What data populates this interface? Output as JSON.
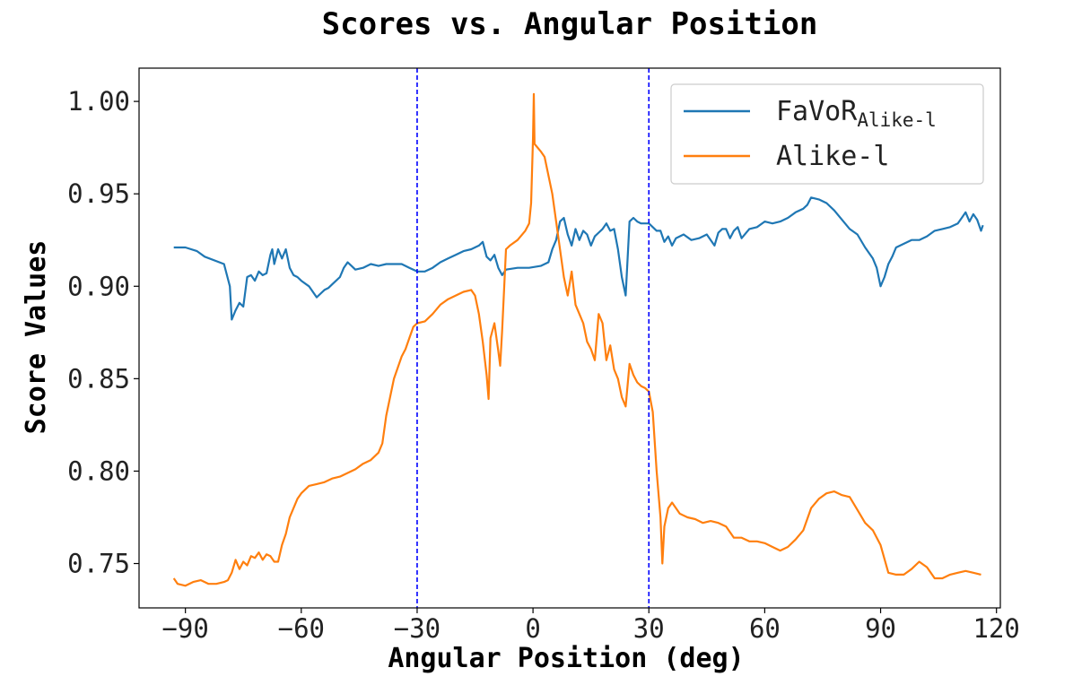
{
  "chart_data": {
    "type": "line",
    "title": "Scores vs. Angular Position",
    "xlabel": "Angular Position (deg)",
    "ylabel": "Score Values",
    "xlim": [
      -102,
      121
    ],
    "ylim": [
      0.726,
      1.018
    ],
    "xticks": [
      -90,
      -60,
      -30,
      0,
      30,
      60,
      90,
      120
    ],
    "xtick_labels": [
      "−90",
      "−60",
      "−30",
      "0",
      "30",
      "60",
      "90",
      "120"
    ],
    "yticks": [
      0.75,
      0.8,
      0.85,
      0.9,
      0.95,
      1.0
    ],
    "ytick_labels": [
      "0.75",
      "0.80",
      "0.85",
      "0.90",
      "0.95",
      "1.00"
    ],
    "grid": false,
    "legend_position": "top-right",
    "vlines": [
      {
        "x": -30,
        "color": "#0000ff",
        "style": "dashed"
      },
      {
        "x": 30,
        "color": "#0000ff",
        "style": "dashed"
      }
    ],
    "series": [
      {
        "name": "FaVoR",
        "name_subscript": "Alike-l",
        "color": "#1f77b4",
        "points": [
          [
            -93,
            0.921
          ],
          [
            -90,
            0.921
          ],
          [
            -87,
            0.919
          ],
          [
            -85,
            0.916
          ],
          [
            -80,
            0.912
          ],
          [
            -78.5,
            0.9
          ],
          [
            -78,
            0.882
          ],
          [
            -77,
            0.887
          ],
          [
            -76,
            0.891
          ],
          [
            -75,
            0.889
          ],
          [
            -74,
            0.905
          ],
          [
            -73,
            0.906
          ],
          [
            -72,
            0.903
          ],
          [
            -71,
            0.908
          ],
          [
            -70,
            0.906
          ],
          [
            -69,
            0.907
          ],
          [
            -68,
            0.917
          ],
          [
            -67.5,
            0.92
          ],
          [
            -67,
            0.912
          ],
          [
            -66,
            0.92
          ],
          [
            -65,
            0.915
          ],
          [
            -64,
            0.92
          ],
          [
            -63,
            0.91
          ],
          [
            -62,
            0.906
          ],
          [
            -61,
            0.905
          ],
          [
            -60,
            0.903
          ],
          [
            -58,
            0.9
          ],
          [
            -56,
            0.894
          ],
          [
            -55,
            0.896
          ],
          [
            -54,
            0.898
          ],
          [
            -53,
            0.899
          ],
          [
            -52,
            0.901
          ],
          [
            -50,
            0.905
          ],
          [
            -49,
            0.91
          ],
          [
            -48,
            0.913
          ],
          [
            -47,
            0.911
          ],
          [
            -46,
            0.909
          ],
          [
            -44,
            0.91
          ],
          [
            -42,
            0.912
          ],
          [
            -40,
            0.911
          ],
          [
            -38,
            0.912
          ],
          [
            -36,
            0.912
          ],
          [
            -34,
            0.912
          ],
          [
            -32,
            0.91
          ],
          [
            -30,
            0.908
          ],
          [
            -28,
            0.908
          ],
          [
            -26,
            0.91
          ],
          [
            -24,
            0.913
          ],
          [
            -22,
            0.915
          ],
          [
            -20,
            0.917
          ],
          [
            -18,
            0.919
          ],
          [
            -16,
            0.92
          ],
          [
            -14,
            0.922
          ],
          [
            -13,
            0.924
          ],
          [
            -12,
            0.916
          ],
          [
            -11,
            0.914
          ],
          [
            -10,
            0.917
          ],
          [
            -9,
            0.91
          ],
          [
            -8,
            0.906
          ],
          [
            -7,
            0.909
          ],
          [
            -4,
            0.91
          ],
          [
            -1,
            0.91
          ],
          [
            2,
            0.911
          ],
          [
            4,
            0.913
          ],
          [
            5,
            0.92
          ],
          [
            6,
            0.925
          ],
          [
            7,
            0.935
          ],
          [
            8,
            0.937
          ],
          [
            9,
            0.928
          ],
          [
            10,
            0.922
          ],
          [
            11,
            0.931
          ],
          [
            12,
            0.925
          ],
          [
            13,
            0.93
          ],
          [
            14,
            0.928
          ],
          [
            15,
            0.922
          ],
          [
            16,
            0.927
          ],
          [
            17,
            0.929
          ],
          [
            18,
            0.931
          ],
          [
            19,
            0.934
          ],
          [
            20,
            0.93
          ],
          [
            21,
            0.931
          ],
          [
            22,
            0.92
          ],
          [
            23,
            0.905
          ],
          [
            24,
            0.895
          ],
          [
            25,
            0.935
          ],
          [
            26,
            0.937
          ],
          [
            27,
            0.935
          ],
          [
            28,
            0.934
          ],
          [
            30,
            0.934
          ],
          [
            32,
            0.93
          ],
          [
            33,
            0.93
          ],
          [
            34,
            0.924
          ],
          [
            35,
            0.927
          ],
          [
            36,
            0.922
          ],
          [
            37,
            0.926
          ],
          [
            39,
            0.928
          ],
          [
            41,
            0.925
          ],
          [
            43,
            0.926
          ],
          [
            45,
            0.928
          ],
          [
            47,
            0.922
          ],
          [
            48,
            0.929
          ],
          [
            49,
            0.931
          ],
          [
            50,
            0.931
          ],
          [
            51,
            0.926
          ],
          [
            52,
            0.93
          ],
          [
            53,
            0.932
          ],
          [
            54,
            0.926
          ],
          [
            56,
            0.931
          ],
          [
            58,
            0.932
          ],
          [
            60,
            0.935
          ],
          [
            62,
            0.934
          ],
          [
            64,
            0.935
          ],
          [
            66,
            0.937
          ],
          [
            68,
            0.94
          ],
          [
            70,
            0.942
          ],
          [
            71,
            0.944
          ],
          [
            72,
            0.948
          ],
          [
            74,
            0.947
          ],
          [
            76,
            0.945
          ],
          [
            78,
            0.941
          ],
          [
            80,
            0.936
          ],
          [
            82,
            0.931
          ],
          [
            84,
            0.928
          ],
          [
            86,
            0.921
          ],
          [
            88,
            0.915
          ],
          [
            89,
            0.91
          ],
          [
            90,
            0.9
          ],
          [
            91,
            0.905
          ],
          [
            92,
            0.912
          ],
          [
            93,
            0.916
          ],
          [
            94,
            0.921
          ],
          [
            96,
            0.923
          ],
          [
            98,
            0.925
          ],
          [
            100,
            0.925
          ],
          [
            102,
            0.927
          ],
          [
            104,
            0.93
          ],
          [
            106,
            0.931
          ],
          [
            108,
            0.932
          ],
          [
            110,
            0.934
          ],
          [
            111,
            0.937
          ],
          [
            112,
            0.94
          ],
          [
            113,
            0.935
          ],
          [
            114,
            0.939
          ],
          [
            115,
            0.936
          ],
          [
            116,
            0.93
          ],
          [
            116.5,
            0.933
          ]
        ]
      },
      {
        "name": "Alike-l",
        "color": "#ff7f0e",
        "points": [
          [
            -93,
            0.742
          ],
          [
            -92,
            0.739
          ],
          [
            -90,
            0.738
          ],
          [
            -88,
            0.74
          ],
          [
            -86,
            0.741
          ],
          [
            -84,
            0.739
          ],
          [
            -82,
            0.739
          ],
          [
            -80,
            0.74
          ],
          [
            -79,
            0.741
          ],
          [
            -78,
            0.745
          ],
          [
            -77,
            0.752
          ],
          [
            -76,
            0.747
          ],
          [
            -75,
            0.751
          ],
          [
            -74,
            0.749
          ],
          [
            -73,
            0.754
          ],
          [
            -72,
            0.753
          ],
          [
            -71,
            0.756
          ],
          [
            -70,
            0.752
          ],
          [
            -69,
            0.755
          ],
          [
            -68,
            0.754
          ],
          [
            -67,
            0.751
          ],
          [
            -66,
            0.751
          ],
          [
            -65,
            0.76
          ],
          [
            -64,
            0.766
          ],
          [
            -63,
            0.775
          ],
          [
            -62,
            0.78
          ],
          [
            -61,
            0.785
          ],
          [
            -60,
            0.788
          ],
          [
            -58,
            0.792
          ],
          [
            -56,
            0.793
          ],
          [
            -54,
            0.794
          ],
          [
            -52,
            0.796
          ],
          [
            -50,
            0.797
          ],
          [
            -48,
            0.799
          ],
          [
            -46,
            0.801
          ],
          [
            -44,
            0.804
          ],
          [
            -42,
            0.806
          ],
          [
            -40,
            0.81
          ],
          [
            -39,
            0.815
          ],
          [
            -38,
            0.83
          ],
          [
            -37,
            0.84
          ],
          [
            -36,
            0.85
          ],
          [
            -35,
            0.856
          ],
          [
            -34,
            0.862
          ],
          [
            -33,
            0.866
          ],
          [
            -32,
            0.872
          ],
          [
            -31,
            0.878
          ],
          [
            -30,
            0.88
          ],
          [
            -28,
            0.881
          ],
          [
            -26,
            0.885
          ],
          [
            -24,
            0.89
          ],
          [
            -22,
            0.893
          ],
          [
            -20,
            0.895
          ],
          [
            -18,
            0.897
          ],
          [
            -16,
            0.898
          ],
          [
            -15,
            0.895
          ],
          [
            -14,
            0.885
          ],
          [
            -13,
            0.87
          ],
          [
            -12,
            0.852
          ],
          [
            -11.5,
            0.839
          ],
          [
            -11,
            0.872
          ],
          [
            -10,
            0.88
          ],
          [
            -9,
            0.865
          ],
          [
            -8.5,
            0.857
          ],
          [
            -8,
            0.876
          ],
          [
            -7,
            0.92
          ],
          [
            -6,
            0.922
          ],
          [
            -4,
            0.925
          ],
          [
            -2,
            0.93
          ],
          [
            -1,
            0.934
          ],
          [
            -0.5,
            0.945
          ],
          [
            0,
            0.98
          ],
          [
            0.2,
            1.004
          ],
          [
            0.4,
            0.977
          ],
          [
            2,
            0.973
          ],
          [
            3,
            0.97
          ],
          [
            4,
            0.96
          ],
          [
            5,
            0.95
          ],
          [
            6,
            0.935
          ],
          [
            7,
            0.92
          ],
          [
            8,
            0.905
          ],
          [
            9,
            0.895
          ],
          [
            10,
            0.908
          ],
          [
            11,
            0.89
          ],
          [
            12,
            0.885
          ],
          [
            13,
            0.88
          ],
          [
            14,
            0.87
          ],
          [
            15,
            0.866
          ],
          [
            16,
            0.86
          ],
          [
            17,
            0.885
          ],
          [
            18,
            0.88
          ],
          [
            19,
            0.86
          ],
          [
            20,
            0.868
          ],
          [
            21,
            0.855
          ],
          [
            22,
            0.85
          ],
          [
            23,
            0.84
          ],
          [
            24,
            0.835
          ],
          [
            25,
            0.858
          ],
          [
            26,
            0.852
          ],
          [
            27,
            0.848
          ],
          [
            28,
            0.846
          ],
          [
            29,
            0.845
          ],
          [
            30,
            0.843
          ],
          [
            31,
            0.832
          ],
          [
            32,
            0.8
          ],
          [
            33,
            0.775
          ],
          [
            33.5,
            0.75
          ],
          [
            34,
            0.77
          ],
          [
            35,
            0.78
          ],
          [
            36,
            0.783
          ],
          [
            38,
            0.777
          ],
          [
            40,
            0.775
          ],
          [
            42,
            0.774
          ],
          [
            44,
            0.772
          ],
          [
            46,
            0.773
          ],
          [
            48,
            0.772
          ],
          [
            50,
            0.77
          ],
          [
            52,
            0.764
          ],
          [
            54,
            0.764
          ],
          [
            56,
            0.762
          ],
          [
            58,
            0.762
          ],
          [
            60,
            0.761
          ],
          [
            62,
            0.759
          ],
          [
            64,
            0.757
          ],
          [
            66,
            0.759
          ],
          [
            68,
            0.763
          ],
          [
            70,
            0.768
          ],
          [
            72,
            0.78
          ],
          [
            74,
            0.785
          ],
          [
            76,
            0.788
          ],
          [
            78,
            0.789
          ],
          [
            80,
            0.787
          ],
          [
            82,
            0.786
          ],
          [
            84,
            0.779
          ],
          [
            86,
            0.772
          ],
          [
            88,
            0.768
          ],
          [
            90,
            0.76
          ],
          [
            92,
            0.745
          ],
          [
            94,
            0.744
          ],
          [
            96,
            0.744
          ],
          [
            98,
            0.747
          ],
          [
            100,
            0.751
          ],
          [
            102,
            0.748
          ],
          [
            104,
            0.742
          ],
          [
            106,
            0.742
          ],
          [
            108,
            0.744
          ],
          [
            110,
            0.745
          ],
          [
            112,
            0.746
          ],
          [
            114,
            0.745
          ],
          [
            116,
            0.744
          ]
        ]
      }
    ]
  }
}
